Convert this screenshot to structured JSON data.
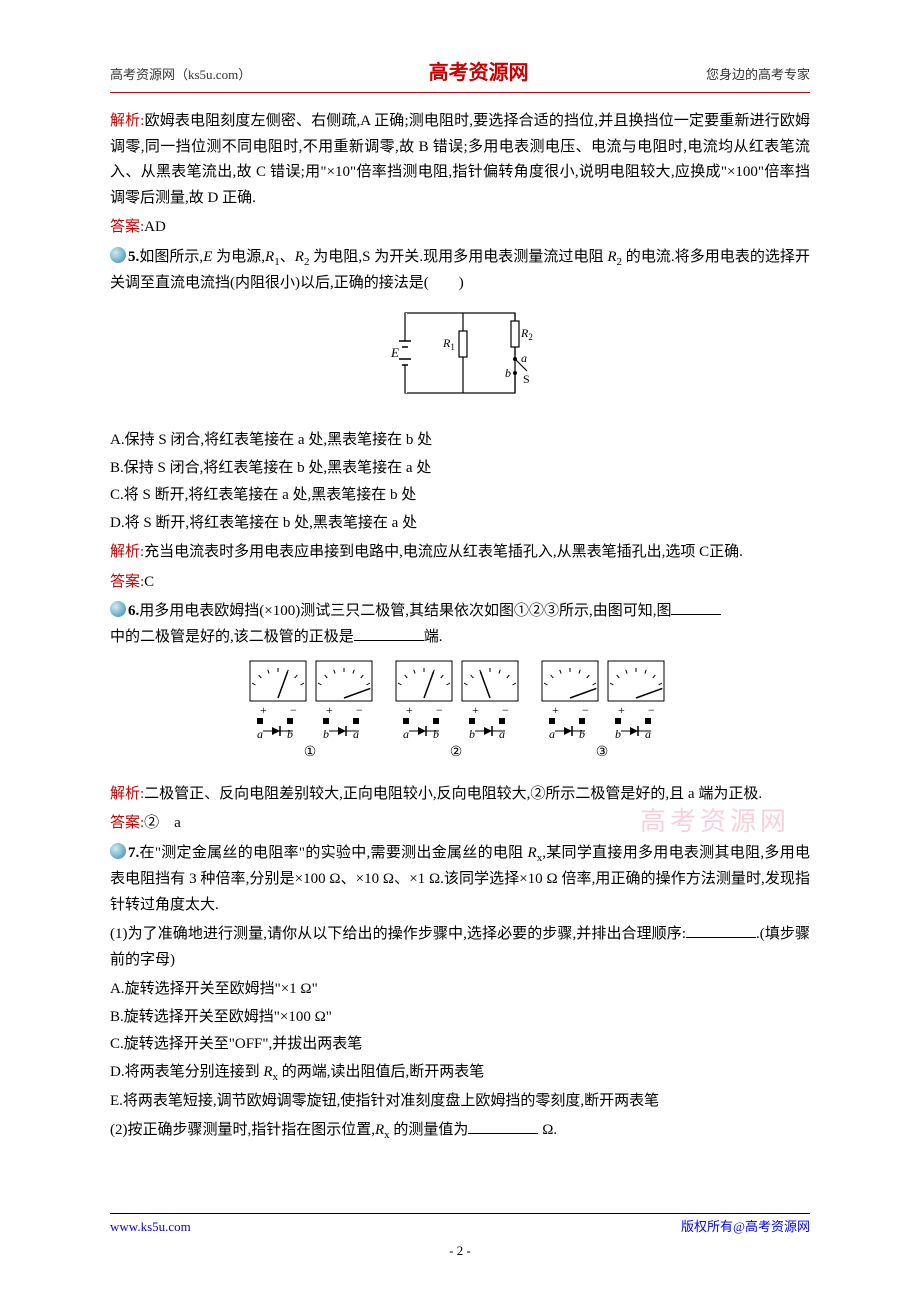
{
  "header": {
    "left": "高考资源网（ks5u.com）",
    "center": "高考资源网",
    "right": "您身边的高考专家"
  },
  "block1": {
    "jiexi_label": "解析:",
    "jiexi_text": "欧姆表电阻刻度左侧密、右侧疏,A 正确;测电阻时,要选择合适的挡位,并且换挡位一定要重新进行欧姆调零,同一挡位测不同电阻时,不用重新调零,故 B 错误;多用电表测电压、电流与电阻时,电流均从红表笔流入、从黑表笔流出,故 C 错误;用\"×10\"倍率挡测电阻,指针偏转角度很小,说明电阻较大,应换成\"×100\"倍率挡调零后测量,故 D 正确.",
    "daan_label": "答案:",
    "daan_text": "AD"
  },
  "q5": {
    "number": "5.",
    "stem_a": "如图所示,",
    "E": "E",
    "stem_b": " 为电源,",
    "R1": "R",
    "sub1": "1",
    "sep": "、",
    "R2": "R",
    "sub2": "2",
    "stem_c": " 为电阻,S 为开关.现用多用电表测量流过电阻 ",
    "R2b": "R",
    "sub2b": "2",
    "stem_d": " 的电流.将多用电表的选择开关调至直流电流挡(内阻很小)以后,正确的接法是(　　)",
    "circuit": {
      "E_label": "E",
      "R1_label": "R₁",
      "R2_label": "R₂",
      "a_label": "a",
      "b_label": "b",
      "S_label": "S",
      "stroke": "#000000",
      "width": 150,
      "height": 110
    },
    "choices": {
      "A": "A.保持 S 闭合,将红表笔接在 a 处,黑表笔接在 b 处",
      "B": "B.保持 S 闭合,将红表笔接在 b 处,黑表笔接在 a 处",
      "C": "C.将 S 断开,将红表笔接在 a 处,黑表笔接在 b 处",
      "D": "D.将 S 断开,将红表笔接在 b 处,黑表笔接在 a 处"
    },
    "jiexi_label": "解析:",
    "jiexi_text": "充当电流表时多用电表应串接到电路中,电流应从红表笔插孔入,从黑表笔插孔出,选项 C正确.",
    "daan_label": "答案:",
    "daan_text": "C"
  },
  "q6": {
    "number": "6.",
    "stem_a": "用多用电表欧姆挡(×100)测试三只二极管,其结果依次如图①②③所示,由图可知,图",
    "stem_b": "中的二极管是好的,该二极管的正极是",
    "stem_c": "端.",
    "meters": {
      "meter_count": 6,
      "groups": [
        "①",
        "②",
        "③"
      ],
      "a_label": "a",
      "b_label": "b",
      "plus": "+",
      "minus": "−",
      "stroke": "#000000",
      "needle_angles_deg": [
        70,
        20,
        70,
        110,
        20,
        20
      ]
    },
    "jiexi_label": "解析:",
    "jiexi_text": "二极管正、反向电阻差别较大,正向电阻较小,反向电阻较大,②所示二极管是好的,且 a 端为正极.",
    "daan_label": "答案:",
    "daan_text": "②　a"
  },
  "q7": {
    "number": "7.",
    "stem_a": "在\"测定金属丝的电阻率\"的实验中,需要测出金属丝的电阻 ",
    "Rx": "R",
    "subx": "x",
    "stem_b": ",某同学直接用多用电表测其电阻,多用电表电阻挡有 3 种倍率,分别是×100 Ω、×10 Ω、×1 Ω.该同学选择×10 Ω 倍率,用正确的操作方法测量时,发现指针转过角度太大.",
    "part1_a": "(1)为了准确地进行测量,请你从以下给出的操作步骤中,选择必要的步骤,并排出合理顺序:",
    "part1_b": ".(填步骤前的字母)",
    "choices": {
      "A": "A.旋转选择开关至欧姆挡\"×1 Ω\"",
      "B": "B.旋转选择开关至欧姆挡\"×100 Ω\"",
      "C": "C.旋转选择开关至\"OFF\",并拔出两表笔",
      "Da": "D.将两表笔分别连接到 ",
      "Db": " 的两端,读出阻值后,断开两表笔",
      "E": "E.将两表笔短接,调节欧姆调零旋钮,使指针对准刻度盘上欧姆挡的零刻度,断开两表笔"
    },
    "part2_a": "(2)按正确步骤测量时,指针指在图示位置,",
    "part2_b": " 的测量值为",
    "part2_c": " Ω."
  },
  "watermark": "高考资源网",
  "footer": {
    "left": "www.ks5u.com",
    "right": "版权所有@高考资源网",
    "page": "- 2 -"
  }
}
